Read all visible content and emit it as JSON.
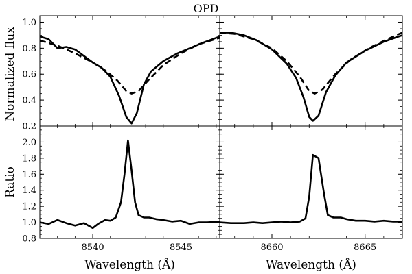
{
  "chart_data": {
    "type": "line",
    "title": "OPD",
    "grid": false,
    "rows": [
      {
        "ylabel": "Normalized flux",
        "ylim": [
          0.2,
          1.05
        ],
        "yticks": [
          "0.2",
          "0.4",
          "0.6",
          "0.8",
          "1.0"
        ]
      },
      {
        "ylabel": "Ratio",
        "ylim": [
          0.8,
          2.2
        ],
        "yticks": [
          "0.8",
          "1.0",
          "1.2",
          "1.4",
          "1.6",
          "1.8",
          "2.0"
        ]
      }
    ],
    "columns": [
      {
        "xlabel": "Wavelength (Å)",
        "xlim": [
          8537,
          8547.2
        ],
        "xticks": [
          "8540",
          "8545"
        ]
      },
      {
        "xlabel": "Wavelength (Å)",
        "xlim": [
          8657.2,
          8667
        ],
        "xticks": [
          "8660",
          "8665"
        ]
      }
    ],
    "panels": [
      {
        "row": 0,
        "col": 0,
        "series": [
          {
            "style": "solid",
            "x": [
              8537.0,
              8537.5,
              8538.0,
              8538.5,
              8539.0,
              8539.5,
              8540.0,
              8540.5,
              8541.0,
              8541.5,
              8541.9,
              8542.2,
              8542.5,
              8542.9,
              8543.3,
              8544.0,
              8544.8,
              8545.5,
              8546.2,
              8547.2
            ],
            "y": [
              0.89,
              0.87,
              0.8,
              0.81,
              0.79,
              0.74,
              0.69,
              0.65,
              0.58,
              0.43,
              0.27,
              0.22,
              0.3,
              0.52,
              0.62,
              0.7,
              0.76,
              0.8,
              0.84,
              0.89
            ]
          },
          {
            "style": "dashed",
            "x": [
              8537.0,
              8538.0,
              8539.0,
              8540.0,
              8540.8,
              8541.4,
              8541.9,
              8542.2,
              8542.6,
              8543.2,
              8544.0,
              8545.0,
              8546.0,
              8547.2
            ],
            "y": [
              0.86,
              0.82,
              0.76,
              0.69,
              0.62,
              0.55,
              0.47,
              0.45,
              0.47,
              0.56,
              0.67,
              0.76,
              0.83,
              0.88
            ]
          }
        ]
      },
      {
        "row": 0,
        "col": 1,
        "series": [
          {
            "style": "solid",
            "x": [
              8657.2,
              8657.8,
              8658.5,
              8659.2,
              8660.0,
              8660.8,
              8661.3,
              8661.7,
              8662.0,
              8662.2,
              8662.5,
              8662.9,
              8663.4,
              8664.0,
              8665.0,
              8666.0,
              8667.0
            ],
            "y": [
              0.92,
              0.92,
              0.9,
              0.86,
              0.79,
              0.68,
              0.57,
              0.42,
              0.27,
              0.24,
              0.28,
              0.46,
              0.59,
              0.69,
              0.78,
              0.85,
              0.9
            ]
          },
          {
            "style": "dashed",
            "x": [
              8657.2,
              8658.0,
              8659.0,
              8660.0,
              8660.8,
              8661.5,
              8662.0,
              8662.3,
              8662.7,
              8663.4,
              8664.2,
              8665.2,
              8666.2,
              8667.0
            ],
            "y": [
              0.92,
              0.91,
              0.87,
              0.8,
              0.7,
              0.58,
              0.47,
              0.45,
              0.48,
              0.6,
              0.71,
              0.8,
              0.87,
              0.92
            ]
          }
        ]
      },
      {
        "row": 1,
        "col": 0,
        "series": [
          {
            "style": "solid",
            "x": [
              8537.0,
              8537.5,
              8538.0,
              8538.5,
              8539.0,
              8539.5,
              8540.0,
              8540.3,
              8540.7,
              8541.0,
              8541.3,
              8541.6,
              8541.8,
              8542.0,
              8542.2,
              8542.4,
              8542.6,
              8542.9,
              8543.2,
              8543.6,
              8544.0,
              8544.5,
              8545.0,
              8545.5,
              8546.0,
              8546.5,
              8547.2
            ],
            "y": [
              1.0,
              0.98,
              1.03,
              0.99,
              0.96,
              0.99,
              0.93,
              0.98,
              1.03,
              1.02,
              1.06,
              1.25,
              1.6,
              2.02,
              1.65,
              1.25,
              1.09,
              1.06,
              1.06,
              1.04,
              1.03,
              1.01,
              1.02,
              0.98,
              1.0,
              1.0,
              1.01
            ]
          }
        ]
      },
      {
        "row": 1,
        "col": 1,
        "series": [
          {
            "style": "solid",
            "x": [
              8657.2,
              8657.8,
              8658.5,
              8659.0,
              8659.5,
              8660.0,
              8660.5,
              8661.0,
              8661.5,
              8661.8,
              8662.0,
              8662.2,
              8662.5,
              8662.8,
              8663.0,
              8663.3,
              8663.7,
              8664.0,
              8664.5,
              8665.0,
              8665.5,
              8666.0,
              8666.5,
              8667.0
            ],
            "y": [
              1.0,
              0.99,
              0.99,
              1.0,
              0.99,
              1.0,
              1.01,
              1.0,
              1.01,
              1.05,
              1.32,
              1.84,
              1.8,
              1.35,
              1.09,
              1.06,
              1.06,
              1.04,
              1.02,
              1.02,
              1.01,
              1.02,
              1.01,
              1.01
            ]
          }
        ]
      }
    ]
  }
}
